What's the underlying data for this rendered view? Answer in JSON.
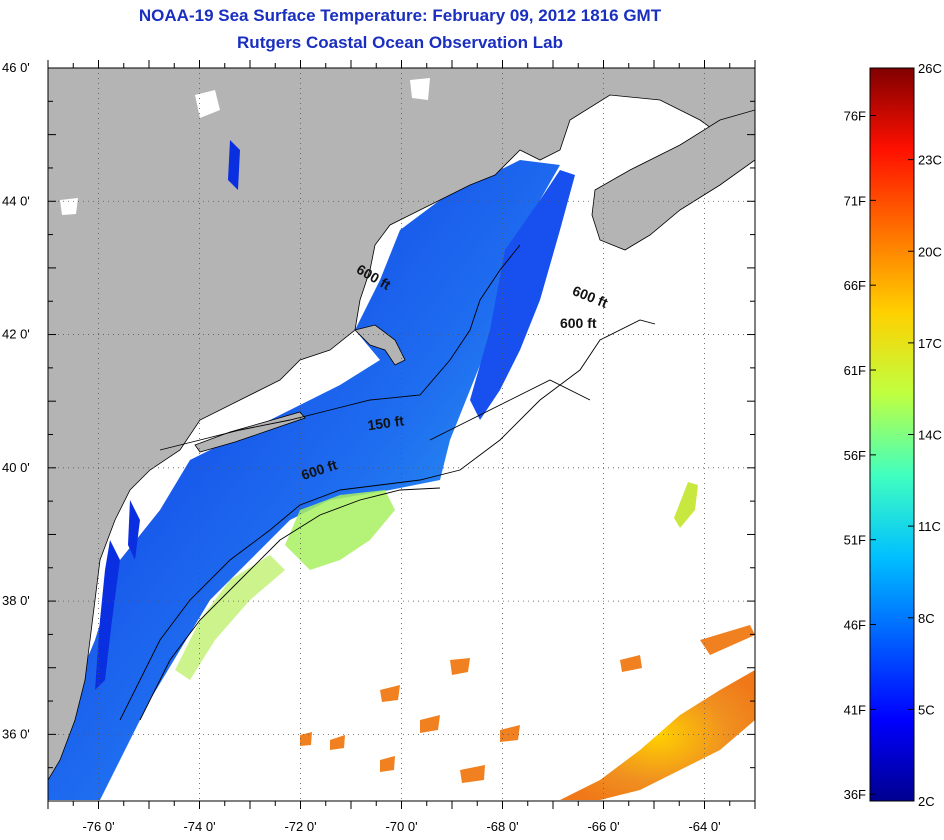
{
  "title": "NOAA-19 Sea Surface Temperature:  February 09, 2012 1816 GMT",
  "subtitle": "Rutgers Coastal Ocean Observation Lab",
  "axes": {
    "lat_ticks": [
      {
        "lat": 46,
        "label": "46 0'"
      },
      {
        "lat": 44,
        "label": "44 0'"
      },
      {
        "lat": 42,
        "label": "42 0'"
      },
      {
        "lat": 40,
        "label": "40 0'"
      },
      {
        "lat": 38,
        "label": "38 0'"
      },
      {
        "lat": 36,
        "label": "36 0'"
      }
    ],
    "lon_ticks": [
      {
        "lon": -76,
        "label": "-76 0'"
      },
      {
        "lon": -74,
        "label": "-74 0'"
      },
      {
        "lon": -72,
        "label": "-72 0'"
      },
      {
        "lon": -70,
        "label": "-70 0'"
      },
      {
        "lon": -68,
        "label": "-68 0'"
      },
      {
        "lon": -66,
        "label": "-66 0'"
      },
      {
        "lon": -64,
        "label": "-64 0'"
      }
    ],
    "lat_range": [
      35,
      46
    ],
    "lon_range": [
      -77,
      -63
    ],
    "grid": "dotted"
  },
  "contour_labels": [
    {
      "text": "600 ft",
      "lon": -70.6,
      "lat": 42.8,
      "rotate": 30
    },
    {
      "text": "600 ft",
      "lon": -66.3,
      "lat": 42.5,
      "rotate": 22
    },
    {
      "text": "600 ft",
      "lon": -66.5,
      "lat": 42.1,
      "rotate": 0
    },
    {
      "text": "150 ft",
      "lon": -70.3,
      "lat": 40.6,
      "rotate": -8
    },
    {
      "text": "600 ft",
      "lon": -71.6,
      "lat": 39.9,
      "rotate": -18
    }
  ],
  "colorbar": {
    "min_c": 2,
    "max_c": 26,
    "colors": [
      "#00008f",
      "#0000ff",
      "#0060ff",
      "#00c0ff",
      "#40ffc0",
      "#c0ff40",
      "#ffd000",
      "#ff7000",
      "#ff1000",
      "#800000"
    ],
    "celsius_labels": [
      {
        "c": 26,
        "label": "26C"
      },
      {
        "c": 23,
        "label": "23C"
      },
      {
        "c": 20,
        "label": "20C"
      },
      {
        "c": 17,
        "label": "17C"
      },
      {
        "c": 14,
        "label": "14C"
      },
      {
        "c": 11,
        "label": "11C"
      },
      {
        "c": 8,
        "label": "8C"
      },
      {
        "c": 5,
        "label": "5C"
      },
      {
        "c": 2,
        "label": "2C"
      }
    ],
    "fahrenheit_labels": [
      {
        "f": 76,
        "label": "76F"
      },
      {
        "f": 71,
        "label": "71F"
      },
      {
        "f": 66,
        "label": "66F"
      },
      {
        "f": 61,
        "label": "61F"
      },
      {
        "f": 56,
        "label": "56F"
      },
      {
        "f": 51,
        "label": "51F"
      },
      {
        "f": 46,
        "label": "46F"
      },
      {
        "f": 41,
        "label": "41F"
      },
      {
        "f": 36,
        "label": "36F"
      }
    ]
  },
  "colors": {
    "title": "#1a2fbf",
    "land": "#b4b4b4",
    "ocean_no_data": "#ffffff",
    "sst_cold": "#0a2fe0",
    "sst_mid": "#1f7cf0",
    "sst_warm_shelf": "#a8f060",
    "sst_gulf_stream": "#f09020"
  }
}
